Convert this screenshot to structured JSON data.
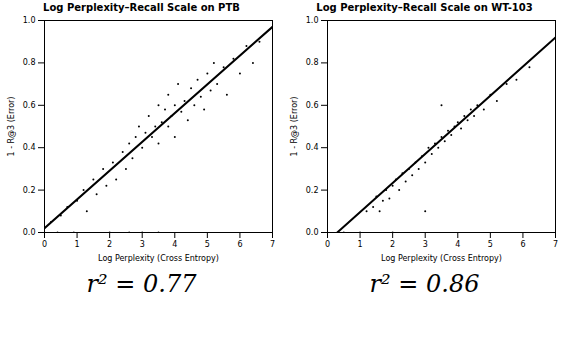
{
  "chart_data": [
    {
      "type": "scatter",
      "title": "Log Perplexity–Recall Scale on PTB",
      "x_label": "Log Perplexity (Cross Entropy)",
      "y_label": "1 - R@3 (Error)",
      "annotation": "r² = 0.77",
      "color": "#000000",
      "xlim": [
        0,
        7
      ],
      "ylim": [
        0,
        1
      ],
      "xticks": [
        0,
        1,
        2,
        3,
        4,
        5,
        6,
        7
      ],
      "yticks": [
        {
          "value": 0,
          "label": "0.0"
        },
        0.2,
        0.4,
        0.6,
        0.8,
        {
          "value": 1,
          "label": "1.0"
        }
      ],
      "grid": false,
      "points": [
        [
          0.2,
          0.05
        ],
        [
          0.4,
          0.0
        ],
        [
          0.5,
          0.08
        ],
        [
          0.7,
          0.12
        ],
        [
          0.9,
          0.0
        ],
        [
          1.0,
          0.15
        ],
        [
          1.2,
          0.2
        ],
        [
          1.3,
          0.1
        ],
        [
          1.5,
          0.25
        ],
        [
          1.6,
          0.18
        ],
        [
          1.8,
          0.3
        ],
        [
          1.9,
          0.22
        ],
        [
          2.0,
          0.0
        ],
        [
          2.1,
          0.33
        ],
        [
          2.2,
          0.25
        ],
        [
          2.4,
          0.38
        ],
        [
          2.5,
          0.3
        ],
        [
          2.6,
          0.42
        ],
        [
          2.7,
          0.35
        ],
        [
          2.8,
          0.45
        ],
        [
          2.9,
          0.5
        ],
        [
          3.0,
          0.4
        ],
        [
          3.0,
          0.0
        ],
        [
          3.1,
          0.47
        ],
        [
          3.2,
          0.55
        ],
        [
          3.3,
          0.45
        ],
        [
          3.4,
          0.5
        ],
        [
          3.5,
          0.6
        ],
        [
          3.5,
          0.42
        ],
        [
          3.6,
          0.52
        ],
        [
          3.7,
          0.58
        ],
        [
          3.8,
          0.5
        ],
        [
          3.8,
          0.65
        ],
        [
          3.9,
          0.55
        ],
        [
          4.0,
          0.6
        ],
        [
          4.0,
          0.45
        ],
        [
          4.1,
          0.7
        ],
        [
          4.2,
          0.57
        ],
        [
          4.3,
          0.62
        ],
        [
          4.4,
          0.53
        ],
        [
          4.5,
          0.68
        ],
        [
          4.6,
          0.6
        ],
        [
          4.7,
          0.72
        ],
        [
          4.8,
          0.64
        ],
        [
          4.9,
          0.58
        ],
        [
          5.0,
          0.75
        ],
        [
          5.1,
          0.67
        ],
        [
          5.2,
          0.8
        ],
        [
          5.3,
          0.7
        ],
        [
          5.5,
          0.78
        ],
        [
          5.6,
          0.65
        ],
        [
          5.8,
          0.82
        ],
        [
          6.0,
          0.75
        ],
        [
          6.2,
          0.88
        ],
        [
          6.4,
          0.8
        ],
        [
          6.6,
          0.9
        ],
        [
          3.5,
          0.0
        ],
        [
          2.6,
          0.0
        ]
      ],
      "fit": {
        "x": [
          0,
          7
        ],
        "y": [
          0.02,
          0.97
        ]
      }
    },
    {
      "type": "scatter",
      "title": "Log Perplexity–Recall Scale on WT-103",
      "x_label": "Log Perplexity (Cross Entropy)",
      "y_label": "1 - R@3 (Error)",
      "annotation": "r² = 0.86",
      "color": "#000000",
      "xlim": [
        0,
        7
      ],
      "ylim": [
        0,
        1
      ],
      "xticks": [
        0,
        1,
        2,
        3,
        4,
        5,
        6,
        7
      ],
      "yticks": [
        {
          "value": 0,
          "label": "0.0"
        },
        0.2,
        0.4,
        0.6,
        0.8,
        {
          "value": 1,
          "label": "1.0"
        }
      ],
      "grid": false,
      "points": [
        [
          0.5,
          0.0
        ],
        [
          1.0,
          0.0
        ],
        [
          1.2,
          0.1
        ],
        [
          1.4,
          0.12
        ],
        [
          1.5,
          0.17
        ],
        [
          1.6,
          0.1
        ],
        [
          1.7,
          0.15
        ],
        [
          1.8,
          0.2
        ],
        [
          1.9,
          0.16
        ],
        [
          2.0,
          0.22
        ],
        [
          2.1,
          0.25
        ],
        [
          2.2,
          0.2
        ],
        [
          2.3,
          0.28
        ],
        [
          2.4,
          0.24
        ],
        [
          2.5,
          0.3
        ],
        [
          2.6,
          0.27
        ],
        [
          2.7,
          0.33
        ],
        [
          2.8,
          0.3
        ],
        [
          2.9,
          0.36
        ],
        [
          3.0,
          0.33
        ],
        [
          3.1,
          0.4
        ],
        [
          3.2,
          0.37
        ],
        [
          3.3,
          0.42
        ],
        [
          3.4,
          0.4
        ],
        [
          3.5,
          0.45
        ],
        [
          3.6,
          0.43
        ],
        [
          3.7,
          0.48
        ],
        [
          3.8,
          0.46
        ],
        [
          3.9,
          0.5
        ],
        [
          4.0,
          0.52
        ],
        [
          4.1,
          0.49
        ],
        [
          4.2,
          0.55
        ],
        [
          4.3,
          0.53
        ],
        [
          4.4,
          0.58
        ],
        [
          4.5,
          0.55
        ],
        [
          4.6,
          0.6
        ],
        [
          4.8,
          0.58
        ],
        [
          5.0,
          0.65
        ],
        [
          5.2,
          0.62
        ],
        [
          5.5,
          0.7
        ],
        [
          5.8,
          0.72
        ],
        [
          6.2,
          0.78
        ],
        [
          2.0,
          0.0
        ],
        [
          3.0,
          0.1
        ],
        [
          3.5,
          0.6
        ]
      ],
      "fit": {
        "x": [
          0.3,
          7
        ],
        "y": [
          0,
          0.92
        ]
      }
    }
  ]
}
